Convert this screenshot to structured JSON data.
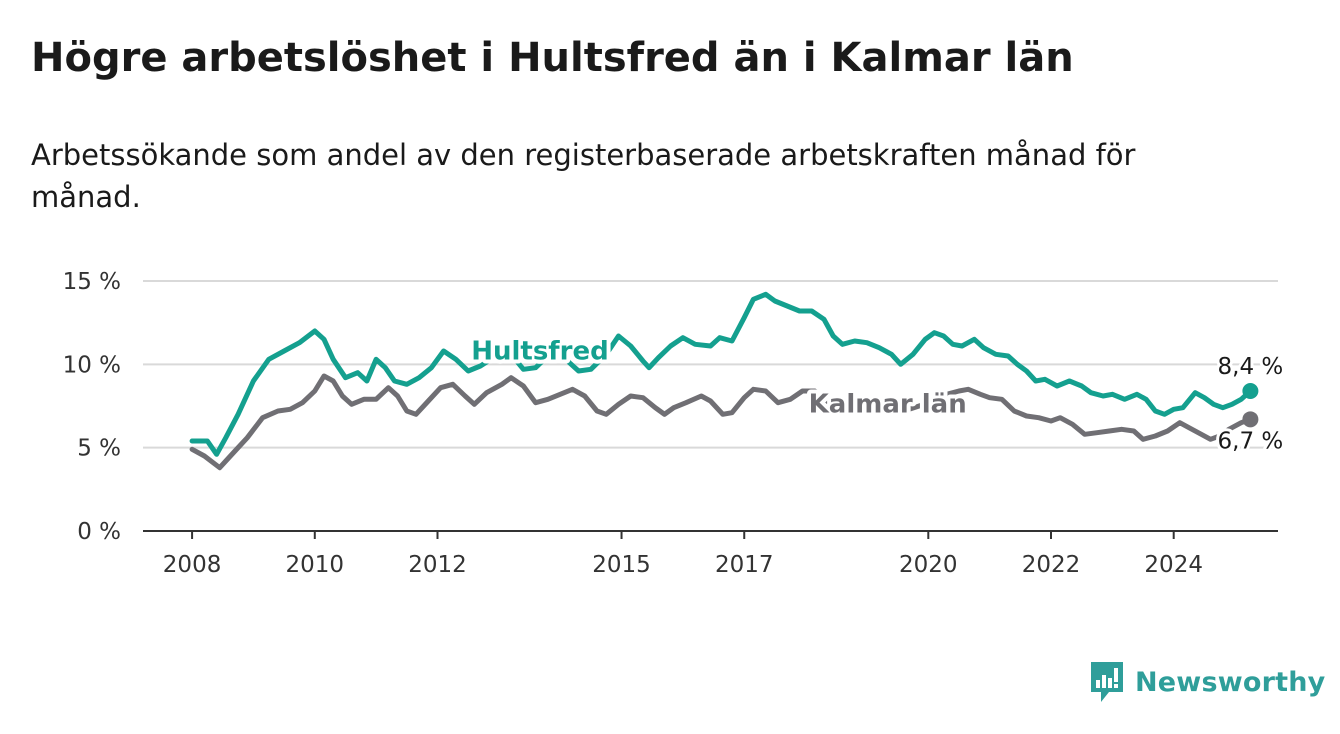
{
  "title": "Högre arbetslöshet i Hultsfred än i Kalmar län",
  "subtitle": "Arbetssökande som andel av den registerbaserade arbetskraften månad för månad.",
  "brand": {
    "name": "Newsworthy",
    "icon": "newsworthy-logo-icon",
    "color": "#2f9e9a"
  },
  "chart_data": {
    "type": "line",
    "y_ticks": [
      "0 %",
      "5 %",
      "10 %",
      "15 %"
    ],
    "y_tick_values": [
      0,
      5,
      10,
      15
    ],
    "x_ticks": [
      "2008",
      "2010",
      "2012",
      "2015",
      "2017",
      "2020",
      "2022",
      "2024"
    ],
    "x_tick_values": [
      2008,
      2010,
      2012,
      2015,
      2017,
      2020,
      2022,
      2024
    ],
    "xlim": [
      2007.2,
      2025.7
    ],
    "ylim": [
      0,
      15
    ],
    "grid": true,
    "series": [
      {
        "name": "Hultsfred",
        "color": "#14a08f",
        "end_label": "8,4 %",
        "points": [
          [
            2008.0,
            5.4
          ],
          [
            2008.25,
            5.4
          ],
          [
            2008.4,
            4.6
          ],
          [
            2008.55,
            5.6
          ],
          [
            2008.75,
            7.0
          ],
          [
            2009.0,
            9.0
          ],
          [
            2009.25,
            10.3
          ],
          [
            2009.5,
            10.8
          ],
          [
            2009.75,
            11.3
          ],
          [
            2010.0,
            12.0
          ],
          [
            2010.15,
            11.5
          ],
          [
            2010.3,
            10.3
          ],
          [
            2010.5,
            9.2
          ],
          [
            2010.7,
            9.5
          ],
          [
            2010.85,
            9.0
          ],
          [
            2011.0,
            10.3
          ],
          [
            2011.15,
            9.8
          ],
          [
            2011.3,
            9.0
          ],
          [
            2011.5,
            8.8
          ],
          [
            2011.7,
            9.2
          ],
          [
            2011.9,
            9.8
          ],
          [
            2012.1,
            10.8
          ],
          [
            2012.3,
            10.3
          ],
          [
            2012.5,
            9.6
          ],
          [
            2012.7,
            9.9
          ],
          [
            2013.0,
            10.6
          ],
          [
            2013.2,
            10.6
          ],
          [
            2013.4,
            9.7
          ],
          [
            2013.6,
            9.8
          ],
          [
            2013.8,
            10.5
          ],
          [
            2014.0,
            10.7
          ],
          [
            2014.15,
            10.1
          ],
          [
            2014.3,
            9.6
          ],
          [
            2014.5,
            9.7
          ],
          [
            2014.75,
            10.6
          ],
          [
            2014.95,
            11.7
          ],
          [
            2015.15,
            11.1
          ],
          [
            2015.35,
            10.2
          ],
          [
            2015.45,
            9.8
          ],
          [
            2015.6,
            10.4
          ],
          [
            2015.8,
            11.1
          ],
          [
            2016.0,
            11.6
          ],
          [
            2016.2,
            11.2
          ],
          [
            2016.45,
            11.1
          ],
          [
            2016.6,
            11.6
          ],
          [
            2016.8,
            11.4
          ],
          [
            2017.0,
            12.8
          ],
          [
            2017.15,
            13.9
          ],
          [
            2017.35,
            14.2
          ],
          [
            2017.5,
            13.8
          ],
          [
            2017.7,
            13.5
          ],
          [
            2017.9,
            13.2
          ],
          [
            2018.1,
            13.2
          ],
          [
            2018.3,
            12.7
          ],
          [
            2018.45,
            11.7
          ],
          [
            2018.6,
            11.2
          ],
          [
            2018.8,
            11.4
          ],
          [
            2019.0,
            11.3
          ],
          [
            2019.2,
            11.0
          ],
          [
            2019.4,
            10.6
          ],
          [
            2019.55,
            10.0
          ],
          [
            2019.75,
            10.6
          ],
          [
            2019.95,
            11.5
          ],
          [
            2020.1,
            11.9
          ],
          [
            2020.25,
            11.7
          ],
          [
            2020.4,
            11.2
          ],
          [
            2020.55,
            11.1
          ],
          [
            2020.75,
            11.5
          ],
          [
            2020.9,
            11.0
          ],
          [
            2021.1,
            10.6
          ],
          [
            2021.3,
            10.5
          ],
          [
            2021.45,
            10.0
          ],
          [
            2021.6,
            9.6
          ],
          [
            2021.75,
            9.0
          ],
          [
            2021.9,
            9.1
          ],
          [
            2022.1,
            8.7
          ],
          [
            2022.3,
            9.0
          ],
          [
            2022.5,
            8.7
          ],
          [
            2022.65,
            8.3
          ],
          [
            2022.85,
            8.1
          ],
          [
            2023.0,
            8.2
          ],
          [
            2023.2,
            7.9
          ],
          [
            2023.4,
            8.2
          ],
          [
            2023.55,
            7.9
          ],
          [
            2023.7,
            7.2
          ],
          [
            2023.85,
            7.0
          ],
          [
            2024.0,
            7.3
          ],
          [
            2024.15,
            7.4
          ],
          [
            2024.35,
            8.3
          ],
          [
            2024.5,
            8.0
          ],
          [
            2024.65,
            7.6
          ],
          [
            2024.8,
            7.4
          ],
          [
            2024.95,
            7.6
          ],
          [
            2025.1,
            7.9
          ],
          [
            2025.25,
            8.4
          ]
        ]
      },
      {
        "name": "Kalmar län",
        "color": "#706f74",
        "end_label": "6,7 %",
        "points": [
          [
            2008.0,
            4.9
          ],
          [
            2008.2,
            4.5
          ],
          [
            2008.45,
            3.8
          ],
          [
            2008.7,
            4.8
          ],
          [
            2008.9,
            5.6
          ],
          [
            2009.15,
            6.8
          ],
          [
            2009.4,
            7.2
          ],
          [
            2009.6,
            7.3
          ],
          [
            2009.8,
            7.7
          ],
          [
            2010.0,
            8.4
          ],
          [
            2010.15,
            9.3
          ],
          [
            2010.3,
            9.0
          ],
          [
            2010.45,
            8.1
          ],
          [
            2010.6,
            7.6
          ],
          [
            2010.8,
            7.9
          ],
          [
            2011.0,
            7.9
          ],
          [
            2011.2,
            8.6
          ],
          [
            2011.35,
            8.1
          ],
          [
            2011.5,
            7.2
          ],
          [
            2011.65,
            7.0
          ],
          [
            2011.85,
            7.8
          ],
          [
            2012.05,
            8.6
          ],
          [
            2012.25,
            8.8
          ],
          [
            2012.45,
            8.1
          ],
          [
            2012.6,
            7.6
          ],
          [
            2012.8,
            8.3
          ],
          [
            2013.05,
            8.8
          ],
          [
            2013.2,
            9.2
          ],
          [
            2013.4,
            8.7
          ],
          [
            2013.6,
            7.7
          ],
          [
            2013.8,
            7.9
          ],
          [
            2014.0,
            8.2
          ],
          [
            2014.2,
            8.5
          ],
          [
            2014.4,
            8.1
          ],
          [
            2014.6,
            7.2
          ],
          [
            2014.75,
            7.0
          ],
          [
            2014.95,
            7.6
          ],
          [
            2015.15,
            8.1
          ],
          [
            2015.35,
            8.0
          ],
          [
            2015.55,
            7.4
          ],
          [
            2015.7,
            7.0
          ],
          [
            2015.85,
            7.4
          ],
          [
            2016.05,
            7.7
          ],
          [
            2016.3,
            8.1
          ],
          [
            2016.45,
            7.8
          ],
          [
            2016.65,
            7.0
          ],
          [
            2016.8,
            7.1
          ],
          [
            2017.0,
            8.0
          ],
          [
            2017.15,
            8.5
          ],
          [
            2017.35,
            8.4
          ],
          [
            2017.55,
            7.7
          ],
          [
            2017.75,
            7.9
          ],
          [
            2017.95,
            8.4
          ],
          [
            2018.15,
            8.4
          ],
          [
            2018.35,
            7.7
          ],
          [
            2018.6,
            7.4
          ],
          [
            2018.85,
            7.6
          ],
          [
            2019.1,
            7.8
          ],
          [
            2019.35,
            7.4
          ],
          [
            2019.6,
            7.2
          ],
          [
            2019.85,
            7.5
          ],
          [
            2020.1,
            7.8
          ],
          [
            2020.3,
            8.2
          ],
          [
            2020.5,
            8.4
          ],
          [
            2020.65,
            8.5
          ],
          [
            2020.85,
            8.2
          ],
          [
            2021.0,
            8.0
          ],
          [
            2021.2,
            7.9
          ],
          [
            2021.4,
            7.2
          ],
          [
            2021.6,
            6.9
          ],
          [
            2021.8,
            6.8
          ],
          [
            2022.0,
            6.6
          ],
          [
            2022.15,
            6.8
          ],
          [
            2022.35,
            6.4
          ],
          [
            2022.55,
            5.8
          ],
          [
            2022.75,
            5.9
          ],
          [
            2022.95,
            6.0
          ],
          [
            2023.15,
            6.1
          ],
          [
            2023.35,
            6.0
          ],
          [
            2023.5,
            5.5
          ],
          [
            2023.7,
            5.7
          ],
          [
            2023.9,
            6.0
          ],
          [
            2024.1,
            6.5
          ],
          [
            2024.25,
            6.2
          ],
          [
            2024.45,
            5.8
          ],
          [
            2024.6,
            5.5
          ],
          [
            2024.75,
            5.7
          ],
          [
            2024.9,
            6.1
          ],
          [
            2025.1,
            6.5
          ],
          [
            2025.25,
            6.7
          ]
        ]
      }
    ]
  }
}
